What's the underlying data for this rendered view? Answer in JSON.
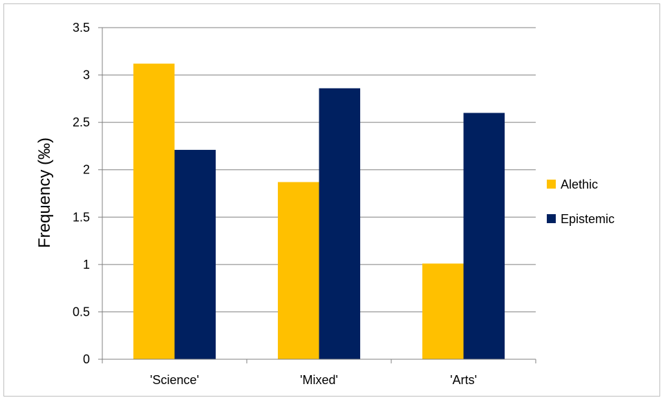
{
  "chart_data": {
    "type": "bar",
    "categories": [
      "'Science'",
      "'Mixed'",
      "'Arts'"
    ],
    "series": [
      {
        "name": "Alethic",
        "values": [
          3.12,
          1.87,
          1.01
        ],
        "color": "#FFC000"
      },
      {
        "name": "Epistemic",
        "values": [
          2.21,
          2.86,
          2.6
        ],
        "color": "#002060"
      }
    ],
    "title": "",
    "xlabel": "",
    "ylabel": "Frequency (‰)",
    "ylim": [
      0,
      3.5
    ],
    "yticks": [
      "0",
      "0.5",
      "1",
      "1.5",
      "2",
      "2.5",
      "3",
      "3.5"
    ],
    "grid": true,
    "legend_position": "right"
  }
}
